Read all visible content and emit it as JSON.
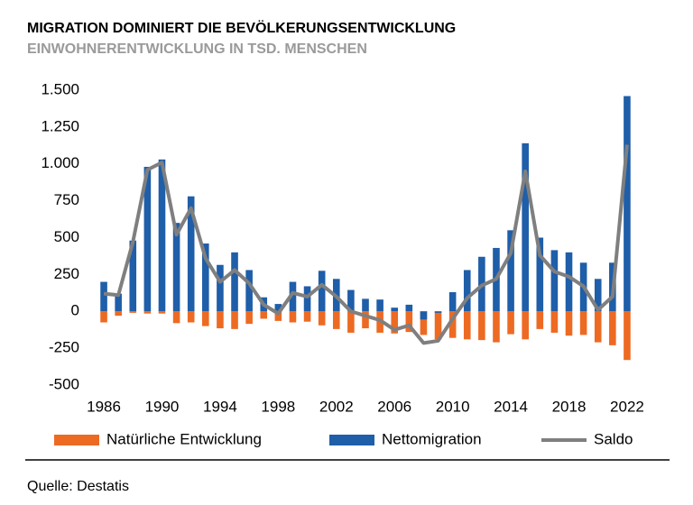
{
  "chart_data": {
    "type": "bar",
    "title": "MIGRATION DOMINIERT DIE BEVÖLKERUNGSENTWICKLUNG",
    "subtitle": "EINWOHNERENTWICKLUNG IN TSD. MENSCHEN",
    "source": "Quelle: Destatis",
    "categories": [
      "1986",
      null,
      null,
      null,
      "1990",
      null,
      null,
      null,
      "1994",
      null,
      null,
      null,
      "1998",
      null,
      null,
      null,
      "2002",
      null,
      null,
      null,
      "2006",
      null,
      null,
      null,
      "2010",
      null,
      null,
      null,
      "2014",
      null,
      null,
      null,
      "2018",
      null,
      null,
      null,
      "2022"
    ],
    "series": [
      {
        "name": "Natürliche Entwicklung",
        "color": "#ed6a23",
        "type": "bar",
        "values": [
          -75,
          -30,
          -10,
          -15,
          -15,
          -80,
          -75,
          -100,
          -115,
          -120,
          -85,
          -50,
          -65,
          -75,
          -70,
          -95,
          -120,
          -145,
          -115,
          -145,
          -150,
          -140,
          -160,
          -190,
          -180,
          -190,
          -195,
          -210,
          -155,
          -190,
          -120,
          -145,
          -165,
          -160,
          -210,
          -230,
          -330
        ]
      },
      {
        "name": "Nettomigration",
        "color": "#1f5ea8",
        "type": "bar",
        "values": [
          200,
          120,
          480,
          980,
          1030,
          600,
          780,
          460,
          315,
          400,
          280,
          95,
          50,
          200,
          170,
          275,
          220,
          145,
          85,
          80,
          25,
          45,
          -55,
          -10,
          130,
          280,
          370,
          430,
          550,
          1140,
          500,
          415,
          400,
          330,
          220,
          330,
          1460
        ]
      },
      {
        "name": "Saldo",
        "color": "#7f7f7f",
        "type": "line",
        "values": [
          120,
          110,
          470,
          960,
          1010,
          520,
          700,
          360,
          200,
          280,
          190,
          45,
          -15,
          125,
          100,
          180,
          100,
          0,
          -30,
          -60,
          -125,
          -95,
          -215,
          -200,
          -50,
          90,
          175,
          220,
          395,
          950,
          380,
          270,
          235,
          170,
          10,
          100,
          1130
        ]
      }
    ],
    "ylim": [
      -500,
      1500
    ],
    "yticks": [
      -500,
      -250,
      0,
      250,
      500,
      750,
      {
        "value": 1000,
        "label": "1.000"
      },
      {
        "value": 1250,
        "label": "1.250"
      },
      {
        "value": 1500,
        "label": "1.500"
      }
    ],
    "grid": false,
    "legend": "bottom"
  }
}
